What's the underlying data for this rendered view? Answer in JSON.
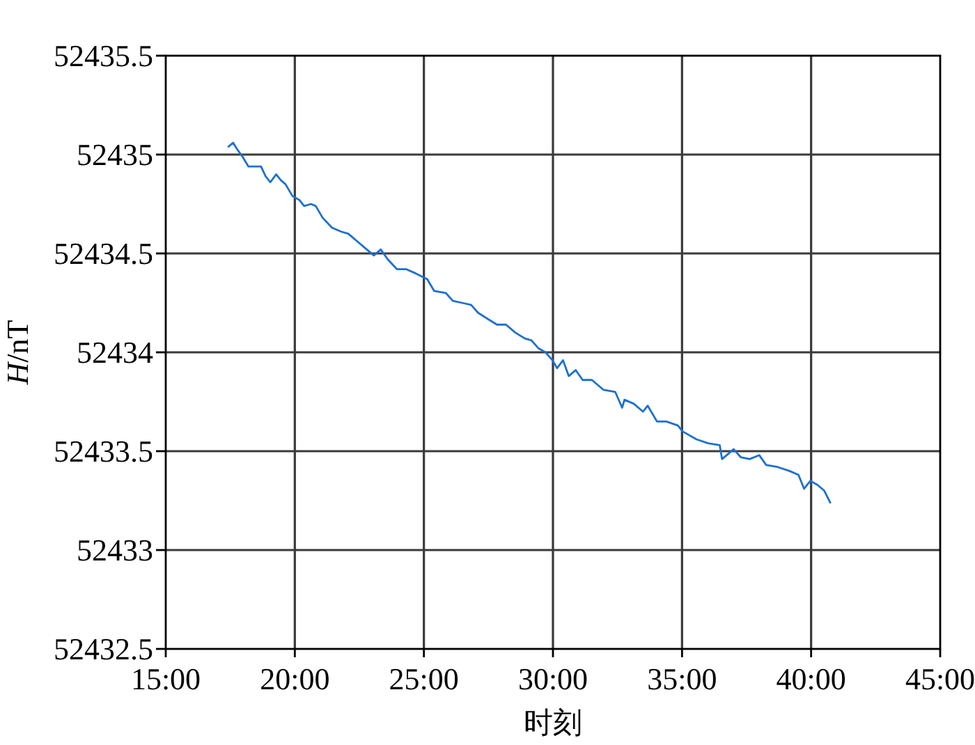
{
  "chart_data": {
    "type": "line",
    "xlabel": "时刻",
    "ylabel": "*H*/nT",
    "color": "#1c70d0",
    "line_style": "solid",
    "grid": true,
    "x": [
      17.43,
      17.61,
      17.75,
      17.97,
      18.2,
      18.47,
      18.69,
      18.87,
      19.05,
      19.28,
      19.46,
      19.64,
      19.91,
      20.18,
      20.36,
      20.63,
      20.81,
      21.08,
      21.44,
      21.8,
      22.07,
      22.43,
      22.79,
      23.06,
      23.33,
      23.6,
      23.96,
      24.32,
      24.67,
      25.13,
      25.4,
      25.85,
      26.12,
      26.48,
      26.83,
      27.1,
      27.46,
      27.83,
      28.18,
      28.54,
      28.91,
      29.17,
      29.44,
      29.71,
      29.98,
      30.16,
      30.39,
      30.61,
      30.88,
      31.15,
      31.51,
      31.96,
      32.41,
      32.68,
      32.77,
      33.13,
      33.49,
      33.67,
      34.03,
      34.39,
      34.84,
      35.02,
      35.56,
      36.01,
      36.46,
      36.55,
      36.82,
      37,
      37.27,
      37.62,
      37.99,
      38.26,
      38.7,
      39.16,
      39.51,
      39.73,
      39.97,
      40.24,
      40.51,
      40.74
    ],
    "values": [
      52435.04,
      52435.06,
      52435.03,
      52434.99,
      52434.94,
      52434.94,
      52434.94,
      52434.89,
      52434.86,
      52434.9,
      52434.87,
      52434.85,
      52434.79,
      52434.77,
      52434.74,
      52434.75,
      52434.74,
      52434.68,
      52434.63,
      52434.61,
      52434.6,
      52434.56,
      52434.52,
      52434.49,
      52434.52,
      52434.47,
      52434.42,
      52434.42,
      52434.4,
      52434.37,
      52434.31,
      52434.3,
      52434.26,
      52434.25,
      52434.24,
      52434.2,
      52434.17,
      52434.14,
      52434.14,
      52434.1,
      52434.07,
      52434.06,
      52434.02,
      52434,
      52433.96,
      52433.92,
      52433.96,
      52433.88,
      52433.91,
      52433.86,
      52433.86,
      52433.81,
      52433.8,
      52433.72,
      52433.76,
      52433.74,
      52433.7,
      52433.73,
      52433.65,
      52433.65,
      52433.63,
      52433.6,
      52433.56,
      52433.54,
      52433.53,
      52433.46,
      52433.49,
      52433.51,
      52433.47,
      52433.46,
      52433.48,
      52433.43,
      52433.42,
      52433.4,
      52433.38,
      52433.31,
      52433.35,
      52433.33,
      52433.3,
      52433.24
    ],
    "xlim": [
      15,
      45
    ],
    "xticks": [
      {
        "value": 15,
        "label": "15:00"
      },
      {
        "value": 20,
        "label": "20:00"
      },
      {
        "value": 25,
        "label": "25:00"
      },
      {
        "value": 30,
        "label": "30:00"
      },
      {
        "value": 35,
        "label": "35:00"
      },
      {
        "value": 40,
        "label": "40:00"
      },
      {
        "value": 45,
        "label": "45:00"
      }
    ],
    "ylim": [
      52432.5,
      52435.5
    ],
    "yticks": [
      52432.5,
      52433,
      52433.5,
      52434,
      52434.5,
      52435,
      52435.5
    ]
  }
}
